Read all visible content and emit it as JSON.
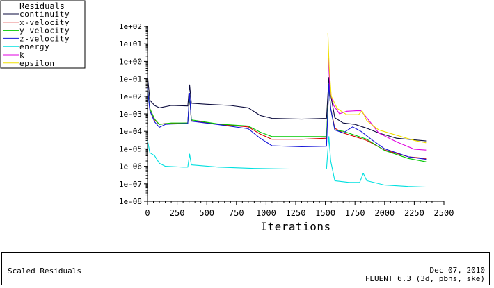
{
  "legend": {
    "title": "Residuals",
    "entries": [
      {
        "name": "continuity",
        "color": "#0a0a3c"
      },
      {
        "name": "x-velocity",
        "color": "#d40000"
      },
      {
        "name": "y-velocity",
        "color": "#00c800"
      },
      {
        "name": "z-velocity",
        "color": "#1414d8"
      },
      {
        "name": "energy",
        "color": "#00e0e0"
      },
      {
        "name": "k",
        "color": "#e000e0"
      },
      {
        "name": "epsilon",
        "color": "#f0e000"
      }
    ]
  },
  "footer": {
    "title": "Scaled Residuals",
    "date": "Dec 07, 2010",
    "version": "FLUENT 6.3 (3d, pbns, ske)"
  },
  "chart_data": {
    "type": "line",
    "title": "",
    "xlabel": "Iterations",
    "ylabel": "",
    "xlim": [
      0,
      2500
    ],
    "ylim_exponent": [
      -8,
      2
    ],
    "yscale": "log",
    "grid": false,
    "legend_position": "top-left",
    "x_ticks": [
      "0",
      "250",
      "500",
      "750",
      "1000",
      "1250",
      "1500",
      "1750",
      "2000",
      "2250",
      "2500"
    ],
    "y_ticks": [
      "1e-08",
      "1e-07",
      "1e-06",
      "1e-05",
      "1e-04",
      "1e-03",
      "1e-02",
      "1e-01",
      "1e+00",
      "1e+01",
      "1e+02"
    ],
    "series": [
      {
        "name": "continuity",
        "color": "#0a0a3c",
        "points": [
          [
            0,
            0.15
          ],
          [
            20,
            0.006
          ],
          [
            60,
            0.003
          ],
          [
            100,
            0.0022
          ],
          [
            200,
            0.003
          ],
          [
            340,
            0.0028
          ],
          [
            355,
            0.045
          ],
          [
            370,
            0.004
          ],
          [
            500,
            0.0035
          ],
          [
            700,
            0.003
          ],
          [
            850,
            0.0022
          ],
          [
            950,
            0.0008
          ],
          [
            1050,
            0.00055
          ],
          [
            1300,
            0.0005
          ],
          [
            1510,
            0.00055
          ],
          [
            1530,
            0.12
          ],
          [
            1545,
            0.012
          ],
          [
            1580,
            0.0006
          ],
          [
            1650,
            0.0003
          ],
          [
            1750,
            0.00025
          ],
          [
            1850,
            0.00015
          ],
          [
            1950,
            8e-05
          ],
          [
            2100,
            4e-05
          ],
          [
            2350,
            2.8e-05
          ]
        ]
      },
      {
        "name": "x-velocity",
        "color": "#d40000",
        "points": [
          [
            0,
            0.03
          ],
          [
            20,
            0.002
          ],
          [
            60,
            0.00045
          ],
          [
            100,
            0.00025
          ],
          [
            150,
            0.00028
          ],
          [
            200,
            0.00028
          ],
          [
            340,
            0.0003
          ],
          [
            355,
            0.012
          ],
          [
            370,
            0.0004
          ],
          [
            600,
            0.00025
          ],
          [
            850,
            0.00018
          ],
          [
            950,
            7e-05
          ],
          [
            1050,
            3.5e-05
          ],
          [
            1300,
            3.5e-05
          ],
          [
            1510,
            4e-05
          ],
          [
            1530,
            0.04
          ],
          [
            1545,
            0.002
          ],
          [
            1580,
            0.00015
          ],
          [
            1650,
            8e-05
          ],
          [
            1750,
            5e-05
          ],
          [
            1850,
            3e-05
          ],
          [
            2000,
            8.5e-06
          ],
          [
            2200,
            3.5e-06
          ],
          [
            2350,
            2.8e-06
          ]
        ]
      },
      {
        "name": "y-velocity",
        "color": "#00c800",
        "points": [
          [
            0,
            0.03
          ],
          [
            20,
            0.002
          ],
          [
            60,
            0.0005
          ],
          [
            100,
            0.00025
          ],
          [
            200,
            0.0003
          ],
          [
            340,
            0.0003
          ],
          [
            355,
            0.012
          ],
          [
            370,
            0.00045
          ],
          [
            600,
            0.00026
          ],
          [
            850,
            0.0002
          ],
          [
            950,
            9e-05
          ],
          [
            1050,
            5e-05
          ],
          [
            1300,
            5e-05
          ],
          [
            1510,
            5e-05
          ],
          [
            1530,
            0.04
          ],
          [
            1545,
            0.002
          ],
          [
            1580,
            0.00012
          ],
          [
            1650,
            0.0001
          ],
          [
            1750,
            6e-05
          ],
          [
            1850,
            3.5e-05
          ],
          [
            2000,
            8e-06
          ],
          [
            2200,
            2.8e-06
          ],
          [
            2350,
            1.8e-06
          ]
        ]
      },
      {
        "name": "z-velocity",
        "color": "#1414d8",
        "points": [
          [
            0,
            0.03
          ],
          [
            20,
            0.0015
          ],
          [
            60,
            0.00035
          ],
          [
            100,
            0.00017
          ],
          [
            150,
            0.00025
          ],
          [
            200,
            0.00026
          ],
          [
            340,
            0.00028
          ],
          [
            355,
            0.015
          ],
          [
            370,
            0.00038
          ],
          [
            600,
            0.00024
          ],
          [
            850,
            0.00014
          ],
          [
            950,
            4e-05
          ],
          [
            1050,
            1.5e-05
          ],
          [
            1300,
            1.3e-05
          ],
          [
            1510,
            1.4e-05
          ],
          [
            1530,
            0.05
          ],
          [
            1545,
            0.002
          ],
          [
            1580,
            0.00012
          ],
          [
            1650,
            8e-05
          ],
          [
            1730,
            0.00018
          ],
          [
            1800,
            0.0001
          ],
          [
            1900,
            3e-05
          ],
          [
            2000,
            1e-05
          ],
          [
            2200,
            3.5e-06
          ],
          [
            2350,
            2.5e-06
          ]
        ]
      },
      {
        "name": "energy",
        "color": "#00e0e0",
        "points": [
          [
            0,
            3e-05
          ],
          [
            20,
            6e-06
          ],
          [
            60,
            4e-06
          ],
          [
            100,
            1.5e-06
          ],
          [
            150,
            1e-06
          ],
          [
            300,
            9e-07
          ],
          [
            340,
            9e-07
          ],
          [
            355,
            5e-06
          ],
          [
            370,
            1.2e-06
          ],
          [
            600,
            9e-07
          ],
          [
            900,
            7.5e-07
          ],
          [
            1200,
            7e-07
          ],
          [
            1510,
            7e-07
          ],
          [
            1530,
            5e-05
          ],
          [
            1545,
            2e-06
          ],
          [
            1580,
            1.5e-07
          ],
          [
            1700,
            1.2e-07
          ],
          [
            1790,
            1.2e-07
          ],
          [
            1820,
            4e-07
          ],
          [
            1850,
            1.5e-07
          ],
          [
            2000,
            8.5e-08
          ],
          [
            2200,
            7e-08
          ],
          [
            2350,
            6.5e-08
          ]
        ]
      },
      {
        "name": "k",
        "color": "#e000e0",
        "points": [
          [
            1525,
            1.5
          ],
          [
            1540,
            0.02
          ],
          [
            1570,
            0.003
          ],
          [
            1620,
            0.001
          ],
          [
            1680,
            0.0014
          ],
          [
            1760,
            0.0015
          ],
          [
            1800,
            0.0015
          ],
          [
            1850,
            0.0006
          ],
          [
            1950,
            8e-05
          ],
          [
            2100,
            2.5e-05
          ],
          [
            2250,
            9.5e-06
          ],
          [
            2350,
            8.5e-06
          ]
        ]
      },
      {
        "name": "epsilon",
        "color": "#f0e000",
        "points": [
          [
            1522,
            40
          ],
          [
            1532,
            0.5
          ],
          [
            1550,
            0.01
          ],
          [
            1600,
            0.002
          ],
          [
            1680,
            0.0009
          ],
          [
            1780,
            0.0009
          ],
          [
            1810,
            0.0015
          ],
          [
            1850,
            0.0004
          ],
          [
            1950,
            0.00012
          ],
          [
            2100,
            6e-05
          ],
          [
            2250,
            3e-05
          ],
          [
            2350,
            2.2e-05
          ]
        ]
      }
    ]
  }
}
